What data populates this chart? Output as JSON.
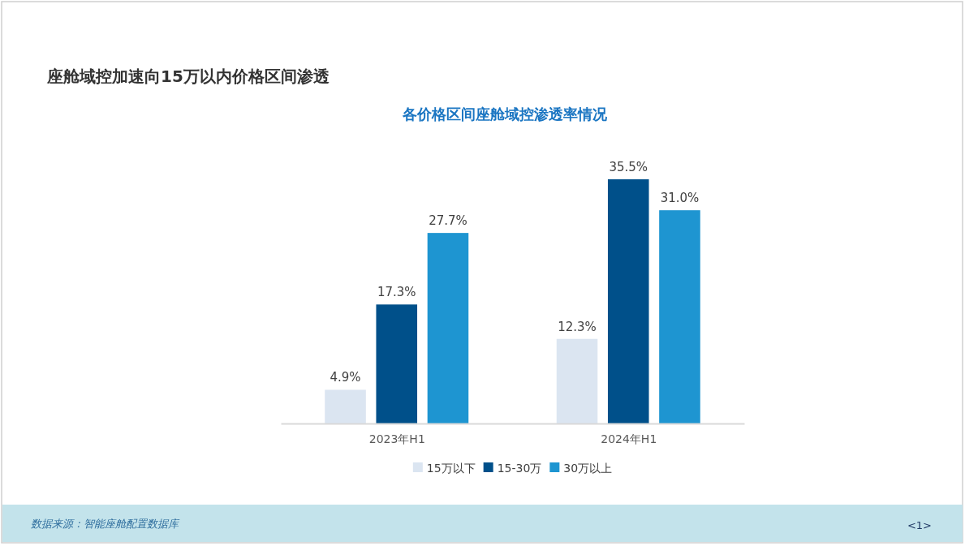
{
  "chart_data": {
    "type": "bar",
    "title": "座舱域控加速向15万以内价格区间渗透",
    "subtitle": "各价格区间座舱域控渗透率情况",
    "categories": [
      "2023年H1",
      "2024年H1"
    ],
    "series": [
      {
        "name": "15万以下",
        "color": "#dbe5f1",
        "values": [
          4.9,
          12.3
        ],
        "value_labels": [
          "4.9%",
          "12.3%"
        ]
      },
      {
        "name": "15-30万",
        "color": "#00508a",
        "values": [
          17.3,
          35.5
        ],
        "value_labels": [
          "17.3%",
          "35.5%"
        ]
      },
      {
        "name": "30万以上",
        "color": "#1e95d1",
        "values": [
          27.7,
          31.0
        ],
        "value_labels": [
          "27.7%",
          "31.0%"
        ]
      }
    ],
    "legend": "bottom",
    "annotations": [
      "数据来源：智能座舱配置数据库",
      "<1>"
    ]
  }
}
